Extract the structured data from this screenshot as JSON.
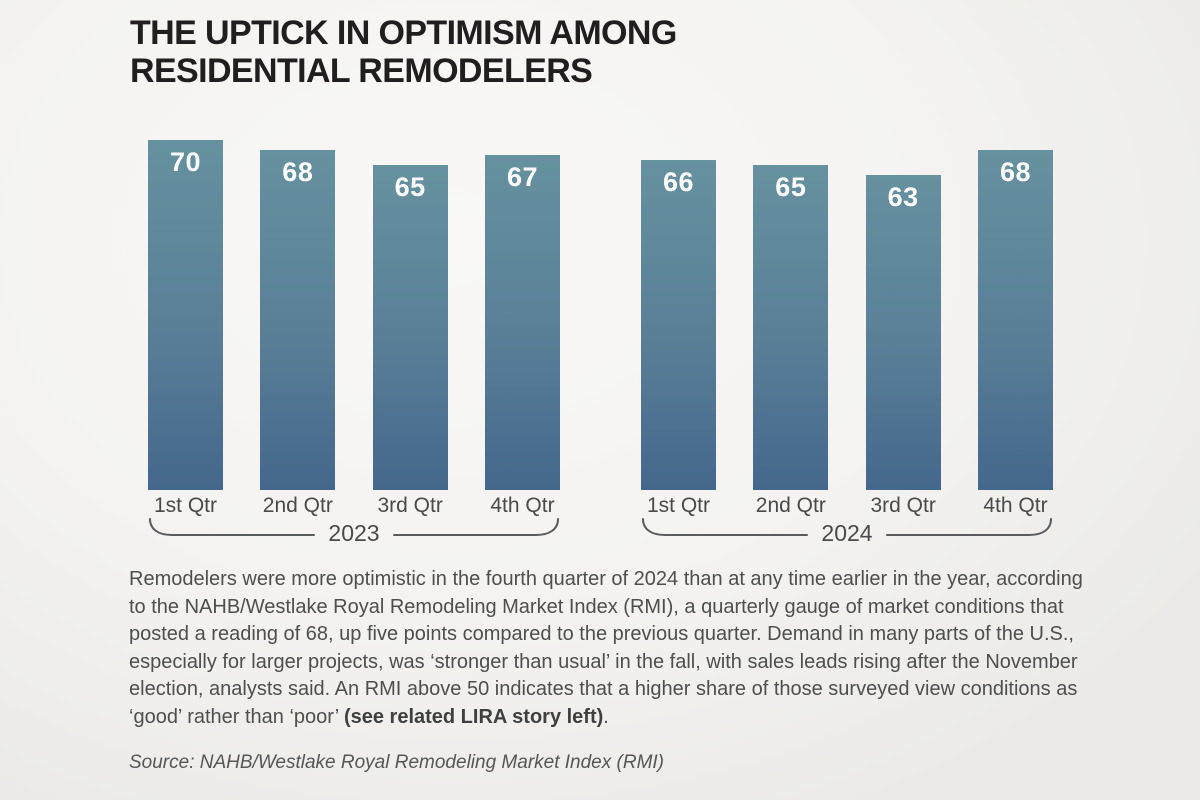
{
  "title": {
    "line1": "THE UPTICK IN OPTIMISM AMONG",
    "line2": "RESIDENTIAL REMODELERS"
  },
  "chart_data": {
    "type": "bar",
    "title": "The uptick in optimism among residential remodelers",
    "ylabel": "NAHB/Westlake Royal Remodeling Market Index (RMI)",
    "ylim": [
      0,
      70
    ],
    "value_labels_shown": true,
    "groups": [
      {
        "year": "2023",
        "categories": [
          "1st Qtr",
          "2nd Qtr",
          "3rd Qtr",
          "4th Qtr"
        ],
        "values": [
          70,
          68,
          65,
          67
        ]
      },
      {
        "year": "2024",
        "categories": [
          "1st Qtr",
          "2nd Qtr",
          "3rd Qtr",
          "4th Qtr"
        ],
        "values": [
          66,
          65,
          63,
          68
        ]
      }
    ],
    "colors": {
      "bar_gradient_top": "#66919f",
      "bar_gradient_bottom": "#44678c",
      "value_label": "#ffffff",
      "axis_text": "#4a4a4a",
      "bracket_stroke": "#5a5b5d",
      "title_text": "#211e1f",
      "body_text": "#4e4e4e"
    }
  },
  "caption": {
    "normal": "Remodelers were more optimistic in the fourth quarter of 2024 than at any time earlier in the year, according to the NAHB/Westlake Royal Remodeling Market Index (RMI), a quarterly gauge of market conditions that posted a reading of 68, up five points compared to the previous quarter. Demand in many parts of the U.S., especially for larger projects, was ‘stronger than usual’ in the fall, with sales leads rising after the November election, analysts said. An RMI above 50 indicates that a higher share of those surveyed view conditions as ‘good’ rather than ‘poor’ ",
    "bold": "(see related LIRA story left)",
    "tail": "."
  },
  "source": "Source: NAHB/Westlake Royal Remodeling Market Index (RMI)"
}
